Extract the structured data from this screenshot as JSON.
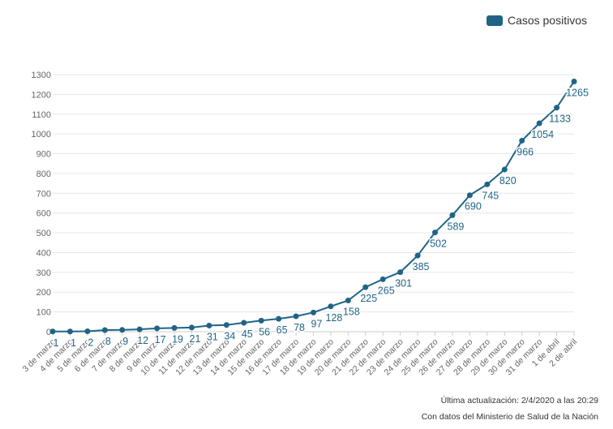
{
  "legend": {
    "label": "Casos positivos",
    "color": "#1f6487"
  },
  "footer": {
    "updated": "Última actualización: 2/4/2020 a las 20:29",
    "source": "Con datos del Ministerio de Salud de la Nación"
  },
  "chart_data": {
    "type": "line",
    "categories": [
      "3 de marzo",
      "4 de marzo",
      "5 de marzo",
      "6 de marzo",
      "7 de marzo",
      "8 de marzo",
      "9 de marzo",
      "10 de marzo",
      "11 de marzo",
      "12 de marzo",
      "13 de marzo",
      "14 de marzo",
      "15 de marzo",
      "16 de marzo",
      "17 de marzo",
      "18 de marzo",
      "19 de marzo",
      "20 de marzo",
      "21 de marzo",
      "22 de marzo",
      "23 de marzo",
      "24 de marzo",
      "25 de marzo",
      "26 de marzo",
      "27 de marzo",
      "28 de marzo",
      "29 de marzo",
      "30 de marzo",
      "31 de marzo",
      "1 de abril",
      "2 de abril"
    ],
    "series": [
      {
        "name": "Casos positivos",
        "values": [
          1,
          1,
          2,
          8,
          9,
          12,
          17,
          19,
          21,
          31,
          34,
          45,
          56,
          65,
          78,
          97,
          128,
          158,
          225,
          265,
          301,
          385,
          502,
          589,
          690,
          745,
          820,
          966,
          1054,
          1133,
          1265
        ]
      }
    ],
    "data_labels": [
      "1",
      "1",
      "2",
      "8",
      "9",
      "12",
      "17",
      "19",
      "21",
      "31",
      "34",
      "45",
      "56",
      "65",
      "78",
      "97",
      "128",
      "158",
      "225",
      "265",
      "301",
      "385",
      "502",
      "589",
      "690",
      "745",
      "820",
      "966",
      "1054",
      "1133",
      "1265"
    ],
    "yticks": [
      "0",
      "100",
      "200",
      "300",
      "400",
      "500",
      "600",
      "700",
      "800",
      "900",
      "1000",
      "1100",
      "1200",
      "1300"
    ],
    "ylim": [
      0,
      1300
    ],
    "grid": true,
    "legend_position": "top-right",
    "color": "#1f6487"
  }
}
